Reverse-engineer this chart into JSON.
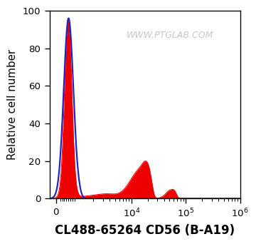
{
  "xlabel": "CL488-65264 CD56 (B-A19)",
  "ylabel": "Relative cell number",
  "ylim": [
    0,
    100
  ],
  "watermark": "WWW.PTGLAB.COM",
  "watermark_color": "#c8c8c8",
  "background_color": "#ffffff",
  "blue_line_color": "#2222bb",
  "red_fill_color": "#ee0000",
  "xlabel_fontsize": 10,
  "ylabel_fontsize": 9,
  "yticks": [
    0,
    20,
    40,
    60,
    80,
    100
  ],
  "figsize": [
    3.0,
    2.85
  ],
  "dpi": 120,
  "linthresh": 1000,
  "linscale": 0.35
}
